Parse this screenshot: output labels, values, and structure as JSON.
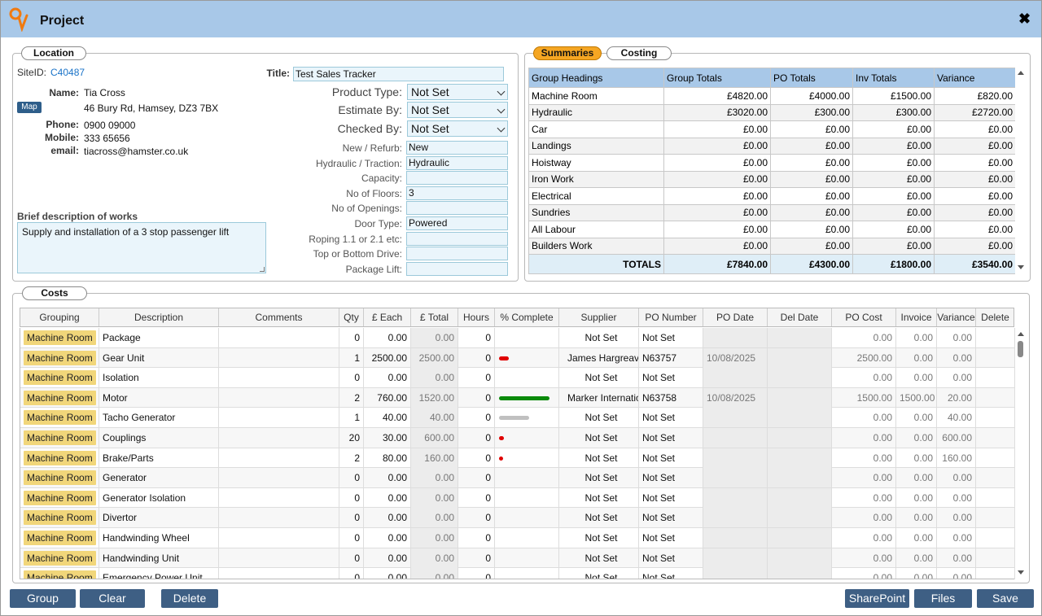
{
  "window": {
    "title": "Project"
  },
  "location": {
    "tab": "Location",
    "siteid_label": "SiteID:",
    "siteid": "C40487",
    "name_label": "Name:",
    "name": "Tia Cross",
    "map": "Map",
    "address": "46 Bury Rd, Hamsey, DZ3 7BX",
    "phone_label": "Phone:",
    "phone": "0900 09000",
    "mobile_label": "Mobile:",
    "mobile": "333 65656",
    "email_label": "email:",
    "email": "tiacross@hamster.co.uk",
    "brief_label": "Brief description of works",
    "brief": "Supply and installation of a 3 stop passenger lift",
    "title_label": "Title:",
    "title": "Test Sales Tracker",
    "selects": [
      {
        "label": "Product Type:",
        "value": "Not Set"
      },
      {
        "label": "Estimate By:",
        "value": "Not Set"
      },
      {
        "label": "Checked By:",
        "value": "Not Set"
      }
    ],
    "fields": [
      {
        "label": "New / Refurb:",
        "value": "New"
      },
      {
        "label": "Hydraulic / Traction:",
        "value": "Hydraulic"
      },
      {
        "label": "Capacity:",
        "value": ""
      },
      {
        "label": "No of Floors:",
        "value": "3"
      },
      {
        "label": "No of Openings:",
        "value": ""
      },
      {
        "label": "Door Type:",
        "value": "Powered"
      },
      {
        "label": "Roping 1.1 or 2.1 etc:",
        "value": ""
      },
      {
        "label": "Top or Bottom Drive:",
        "value": ""
      },
      {
        "label": "Package Lift:",
        "value": ""
      }
    ]
  },
  "summaries": {
    "tabs": [
      "Summaries",
      "Costing"
    ],
    "headers": [
      "Group Headings",
      "Group Totals",
      "PO Totals",
      "Inv Totals",
      "Variance"
    ],
    "rows": [
      [
        "Machine Room",
        "£4820.00",
        "£4000.00",
        "£1500.00",
        "£820.00"
      ],
      [
        "Hydraulic",
        "£3020.00",
        "£300.00",
        "£300.00",
        "£2720.00"
      ],
      [
        "Car",
        "£0.00",
        "£0.00",
        "£0.00",
        "£0.00"
      ],
      [
        "Landings",
        "£0.00",
        "£0.00",
        "£0.00",
        "£0.00"
      ],
      [
        "Hoistway",
        "£0.00",
        "£0.00",
        "£0.00",
        "£0.00"
      ],
      [
        "Iron Work",
        "£0.00",
        "£0.00",
        "£0.00",
        "£0.00"
      ],
      [
        "Electrical",
        "£0.00",
        "£0.00",
        "£0.00",
        "£0.00"
      ],
      [
        "Sundries",
        "£0.00",
        "£0.00",
        "£0.00",
        "£0.00"
      ],
      [
        "All Labour",
        "£0.00",
        "£0.00",
        "£0.00",
        "£0.00"
      ],
      [
        "Builders Work",
        "£0.00",
        "£0.00",
        "£0.00",
        "£0.00"
      ]
    ],
    "totals": [
      "TOTALS",
      "£7840.00",
      "£4300.00",
      "£1800.00",
      "£3540.00"
    ]
  },
  "costs": {
    "tab": "Costs",
    "headers": [
      "Grouping",
      "Description",
      "Comments",
      "Qty",
      "£ Each",
      "£ Total",
      "Hours",
      "% Complete",
      "Supplier",
      "PO Number",
      "PO Date",
      "Del Date",
      "PO Cost",
      "Invoice",
      "Variance",
      "Delete"
    ],
    "rows": [
      {
        "group": "Machine Room",
        "desc": "Package",
        "comments": "",
        "qty": "0",
        "each": "0.00",
        "total": "0.00",
        "hours": "0",
        "pct": 0,
        "bar": "",
        "supplier": "Not Set",
        "po": "Not Set",
        "podate": "",
        "deldate": "",
        "pocost": "0.00",
        "invoice": "0.00",
        "variance": "0.00"
      },
      {
        "group": "Machine Room",
        "desc": "Gear Unit",
        "comments": "",
        "qty": "1",
        "each": "2500.00",
        "total": "2500.00",
        "hours": "0",
        "pct": 0.2,
        "bar": "#e00000",
        "supplier": "James Hargreaves",
        "po": "N63757",
        "podate": "10/08/2025",
        "deldate": "",
        "pocost": "2500.00",
        "invoice": "0.00",
        "variance": "0.00"
      },
      {
        "group": "Machine Room",
        "desc": "Isolation",
        "comments": "",
        "qty": "0",
        "each": "0.00",
        "total": "0.00",
        "hours": "0",
        "pct": 0,
        "bar": "",
        "supplier": "Not Set",
        "po": "Not Set",
        "podate": "",
        "deldate": "",
        "pocost": "0.00",
        "invoice": "0.00",
        "variance": "0.00"
      },
      {
        "group": "Machine Room",
        "desc": "Motor",
        "comments": "",
        "qty": "2",
        "each": "760.00",
        "total": "1520.00",
        "hours": "0",
        "pct": 1,
        "bar": "#0a8a0a",
        "supplier": "Marker International",
        "po": "N63758",
        "podate": "10/08/2025",
        "deldate": "",
        "pocost": "1500.00",
        "invoice": "1500.00",
        "variance": "20.00"
      },
      {
        "group": "Machine Room",
        "desc": "Tacho Generator",
        "comments": "",
        "qty": "1",
        "each": "40.00",
        "total": "40.00",
        "hours": "0",
        "pct": 0.6,
        "bar": "#c0c0c0",
        "supplier": "Not Set",
        "po": "Not Set",
        "podate": "",
        "deldate": "",
        "pocost": "0.00",
        "invoice": "0.00",
        "variance": "40.00"
      },
      {
        "group": "Machine Room",
        "desc": "Couplings",
        "comments": "",
        "qty": "20",
        "each": "30.00",
        "total": "600.00",
        "hours": "0",
        "pct": 0.1,
        "bar": "#e00000",
        "supplier": "Not Set",
        "po": "Not Set",
        "podate": "",
        "deldate": "",
        "pocost": "0.00",
        "invoice": "0.00",
        "variance": "600.00"
      },
      {
        "group": "Machine Room",
        "desc": "Brake/Parts",
        "comments": "",
        "qty": "2",
        "each": "80.00",
        "total": "160.00",
        "hours": "0",
        "pct": 0.07,
        "bar": "#e00000",
        "supplier": "Not Set",
        "po": "Not Set",
        "podate": "",
        "deldate": "",
        "pocost": "0.00",
        "invoice": "0.00",
        "variance": "160.00"
      },
      {
        "group": "Machine Room",
        "desc": "Generator",
        "comments": "",
        "qty": "0",
        "each": "0.00",
        "total": "0.00",
        "hours": "0",
        "pct": 0,
        "bar": "",
        "supplier": "Not Set",
        "po": "Not Set",
        "podate": "",
        "deldate": "",
        "pocost": "0.00",
        "invoice": "0.00",
        "variance": "0.00"
      },
      {
        "group": "Machine Room",
        "desc": "Generator Isolation",
        "comments": "",
        "qty": "0",
        "each": "0.00",
        "total": "0.00",
        "hours": "0",
        "pct": 0,
        "bar": "",
        "supplier": "Not Set",
        "po": "Not Set",
        "podate": "",
        "deldate": "",
        "pocost": "0.00",
        "invoice": "0.00",
        "variance": "0.00"
      },
      {
        "group": "Machine Room",
        "desc": "Divertor",
        "comments": "",
        "qty": "0",
        "each": "0.00",
        "total": "0.00",
        "hours": "0",
        "pct": 0,
        "bar": "",
        "supplier": "Not Set",
        "po": "Not Set",
        "podate": "",
        "deldate": "",
        "pocost": "0.00",
        "invoice": "0.00",
        "variance": "0.00"
      },
      {
        "group": "Machine Room",
        "desc": "Handwinding Wheel",
        "comments": "",
        "qty": "0",
        "each": "0.00",
        "total": "0.00",
        "hours": "0",
        "pct": 0,
        "bar": "",
        "supplier": "Not Set",
        "po": "Not Set",
        "podate": "",
        "deldate": "",
        "pocost": "0.00",
        "invoice": "0.00",
        "variance": "0.00"
      },
      {
        "group": "Machine Room",
        "desc": "Handwinding Unit",
        "comments": "",
        "qty": "0",
        "each": "0.00",
        "total": "0.00",
        "hours": "0",
        "pct": 0,
        "bar": "",
        "supplier": "Not Set",
        "po": "Not Set",
        "podate": "",
        "deldate": "",
        "pocost": "0.00",
        "invoice": "0.00",
        "variance": "0.00"
      },
      {
        "group": "Machine Room",
        "desc": "Emergency Power Unit",
        "comments": "",
        "qty": "0",
        "each": "0.00",
        "total": "0.00",
        "hours": "0",
        "pct": 0,
        "bar": "",
        "supplier": "Not Set",
        "po": "Not Set",
        "podate": "",
        "deldate": "",
        "pocost": "0.00",
        "invoice": "0.00",
        "variance": "0.00"
      }
    ]
  },
  "buttons": {
    "group": "Group",
    "clear": "Clear",
    "delete": "Delete",
    "sharepoint": "SharePoint",
    "files": "Files",
    "save": "Save"
  }
}
